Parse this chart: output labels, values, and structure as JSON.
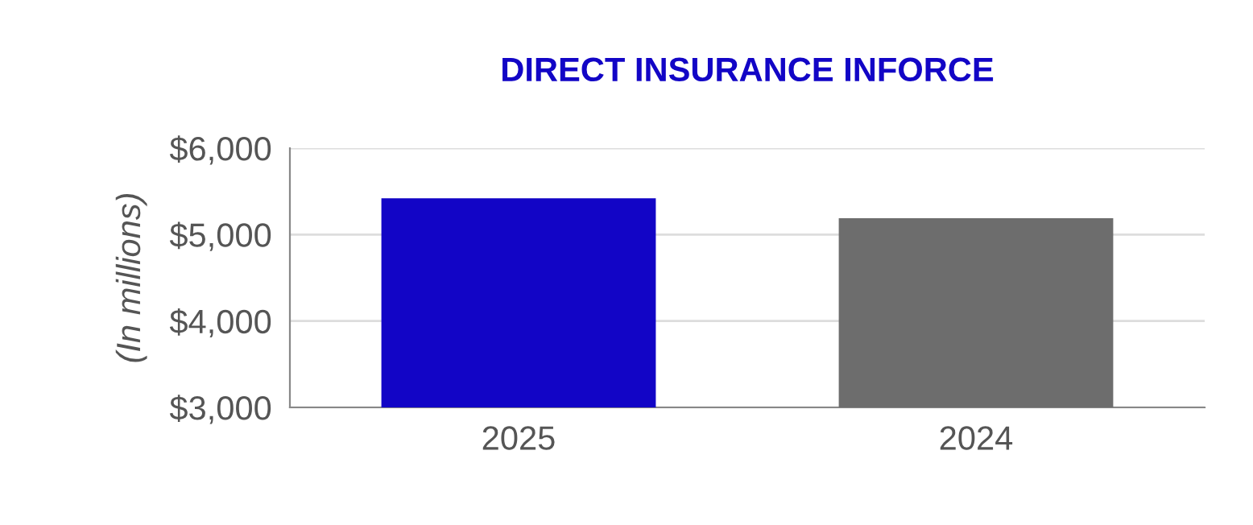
{
  "chart_data": {
    "type": "bar",
    "title": "DIRECT INSURANCE INFORCE",
    "ylabel": "(In millions)",
    "categories": [
      "2025",
      "2024"
    ],
    "values": [
      5420,
      5190
    ],
    "colors": [
      "#1205c6",
      "#6d6d6d"
    ],
    "ylim": [
      3000,
      6000
    ],
    "yticks": [
      {
        "value": 3000,
        "label": "$3,000"
      },
      {
        "value": 4000,
        "label": "$4,000"
      },
      {
        "value": 5000,
        "label": "$5,000"
      },
      {
        "value": 6000,
        "label": "$6,000"
      }
    ],
    "grid": "y"
  }
}
